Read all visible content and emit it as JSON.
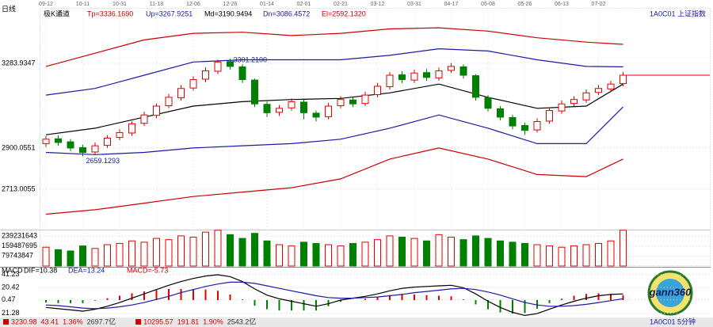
{
  "header": {
    "period": "日线",
    "indicator": "极K通道",
    "symbol": "1A0C01 上证指数"
  },
  "chart_data": [
    {
      "type": "candlestick",
      "categories": [
        "09-12",
        null,
        null,
        "10-11",
        null,
        null,
        "10-31",
        null,
        null,
        "11-18",
        null,
        null,
        "12-06",
        null,
        null,
        "12-26",
        null,
        null,
        "01-14",
        null,
        null,
        "02-01",
        null,
        null,
        "02-21",
        null,
        null,
        "03-12",
        null,
        null,
        "03-31",
        null,
        null,
        "04-17",
        null,
        null,
        "05-08",
        null,
        null,
        "05-26",
        null,
        null,
        "06-13",
        null,
        null,
        "07-02",
        null,
        null
      ],
      "open": [
        2920,
        2942,
        2928,
        2902,
        2882,
        2912,
        2948,
        2968,
        3012,
        3048,
        3092,
        3128,
        3172,
        3212,
        3248,
        3292,
        3268,
        3208,
        3098,
        3062,
        3082,
        3108,
        3058,
        3042,
        3092,
        3118,
        3102,
        3142,
        3178,
        3232,
        3208,
        3242,
        3218,
        3252,
        3268,
        3228,
        3128,
        3078,
        3038,
        3002,
        2982,
        3022,
        3068,
        3102,
        3118,
        3152,
        3168,
        3192
      ],
      "high": [
        2955,
        2958,
        2940,
        2915,
        2925,
        2958,
        2985,
        3022,
        3065,
        3102,
        3145,
        3185,
        3225,
        3266,
        3301,
        3305,
        3280,
        3215,
        3110,
        3095,
        3125,
        3120,
        3070,
        3105,
        3135,
        3130,
        3155,
        3195,
        3245,
        3248,
        3255,
        3258,
        3265,
        3285,
        3280,
        3235,
        3140,
        3090,
        3050,
        3015,
        3035,
        3085,
        3115,
        3135,
        3165,
        3185,
        3205,
        3245
      ],
      "low": [
        2905,
        2910,
        2885,
        2862,
        2870,
        2900,
        2935,
        2955,
        3000,
        3035,
        3080,
        3115,
        3160,
        3198,
        3235,
        3255,
        3195,
        3085,
        3040,
        3045,
        3070,
        3030,
        3020,
        3030,
        3080,
        3085,
        3090,
        3130,
        3165,
        3195,
        3195,
        3205,
        3205,
        3240,
        3215,
        3115,
        3065,
        3025,
        2985,
        2960,
        2970,
        3010,
        3055,
        3090,
        3105,
        3140,
        3155,
        3180
      ],
      "close": [
        2940,
        2925,
        2900,
        2880,
        2910,
        2945,
        2970,
        3010,
        3050,
        3090,
        3130,
        3170,
        3210,
        3250,
        3290,
        3270,
        3210,
        3100,
        3060,
        3080,
        3110,
        3060,
        3040,
        3090,
        3120,
        3100,
        3140,
        3180,
        3230,
        3210,
        3240,
        3220,
        3250,
        3270,
        3230,
        3130,
        3080,
        3040,
        3000,
        2980,
        3020,
        3070,
        3100,
        3120,
        3150,
        3170,
        3190,
        3230
      ],
      "x": [
        0,
        4,
        8,
        12,
        16,
        20,
        24,
        28,
        32,
        36,
        40,
        44,
        47
      ],
      "series": [
        {
          "name": "Tp=3336.1690",
          "color": "#cc0000",
          "values": [
            3270,
            3330,
            3390,
            3420,
            3425,
            3410,
            3420,
            3440,
            3445,
            3430,
            3400,
            3380,
            3370
          ]
        },
        {
          "name": "Up=3267.9251",
          "color": "#1a1aa6",
          "values": [
            3140,
            3170,
            3230,
            3290,
            3300,
            3300,
            3300,
            3320,
            3350,
            3340,
            3300,
            3270,
            3268
          ]
        },
        {
          "name": "Md=3190.9494",
          "color": "#000000",
          "values": [
            2960,
            2990,
            3040,
            3090,
            3110,
            3120,
            3125,
            3150,
            3190,
            3130,
            3080,
            3090,
            3190
          ]
        },
        {
          "name": "Dn=3086.4572",
          "color": "#1a1aa6",
          "values": [
            2880,
            2870,
            2880,
            2900,
            2910,
            2920,
            2940,
            2990,
            3050,
            2990,
            2920,
            2920,
            3086
          ]
        },
        {
          "name": "El=2592.1320",
          "color": "#cc0000",
          "values": [
            2600,
            2620,
            2650,
            2680,
            2700,
            2720,
            2760,
            2850,
            2900,
            2850,
            2780,
            2770,
            2850
          ]
        }
      ],
      "ylim": [
        2530,
        3528
      ],
      "yticks": [
        3283.9347,
        2900.0551,
        2713.0055
      ],
      "annotations": [
        {
          "text": "3301.2100",
          "color": "#1a1aa6"
        },
        {
          "text": "2659.1293",
          "color": "#1a1aa6"
        }
      ]
    },
    {
      "type": "bar",
      "values": [
        150000000,
        130000000,
        120000000,
        160000000,
        140000000,
        170000000,
        180000000,
        200000000,
        190000000,
        220000000,
        210000000,
        240000000,
        230000000,
        270000000,
        285000000,
        250000000,
        220000000,
        260000000,
        200000000,
        170000000,
        160000000,
        190000000,
        180000000,
        170000000,
        160000000,
        180000000,
        190000000,
        210000000,
        240000000,
        230000000,
        220000000,
        200000000,
        250000000,
        230000000,
        210000000,
        240000000,
        220000000,
        200000000,
        190000000,
        180000000,
        170000000,
        160000000,
        150000000,
        160000000,
        170000000,
        180000000,
        200000000,
        285000000
      ],
      "ylim": [
        0,
        290000000
      ],
      "yticks": [
        239231643,
        159487695,
        79743847
      ]
    },
    {
      "type": "macd",
      "title": "MACD",
      "values_label": "MACD=-5.73",
      "values": [
        -4,
        -5,
        -5,
        -5,
        -1,
        3,
        7,
        11,
        14,
        16,
        18,
        18,
        18,
        17,
        15,
        9,
        1,
        -9,
        -15,
        -17,
        -17,
        -17,
        -17,
        -10,
        -3,
        0,
        2,
        5,
        8,
        10,
        9,
        8,
        7,
        6,
        1,
        -7,
        -15,
        -20,
        -22,
        -21,
        -14,
        -5,
        2,
        7,
        10,
        11,
        10,
        8
      ],
      "series": [
        {
          "name": "DIF=10.38",
          "color": "#000000",
          "values": [
            -12,
            -14,
            -16,
            -18,
            -15,
            -10,
            -4,
            3,
            10,
            17,
            24,
            30,
            35,
            39,
            41,
            38,
            30,
            18,
            8,
            2,
            -2,
            -6,
            -10,
            -6,
            0,
            3,
            6,
            10,
            15,
            19,
            21,
            22,
            23,
            24,
            20,
            10,
            -2,
            -12,
            -20,
            -25,
            -22,
            -15,
            -8,
            -2,
            3,
            7,
            9,
            10
          ]
        },
        {
          "name": "DEA=13.24",
          "color": "#1a1aa6",
          "values": [
            -8,
            -9,
            -11,
            -13,
            -14,
            -13,
            -11,
            -8,
            -4,
            1,
            6,
            12,
            17,
            22,
            26,
            29,
            29,
            27,
            23,
            19,
            15,
            11,
            7,
            4,
            3,
            3,
            4,
            5,
            7,
            9,
            12,
            14,
            16,
            18,
            19,
            17,
            13,
            8,
            2,
            -4,
            -8,
            -10,
            -10,
            -9,
            -7,
            -4,
            -1,
            2
          ]
        }
      ],
      "ylim": [
        -27,
        50
      ],
      "yticks": [
        41.23,
        20.42,
        0.47,
        {
          "value": -21.28,
          "label": "21.28"
        }
      ]
    }
  ],
  "status_bar": {
    "items": [
      {
        "text": "3230.98",
        "color": "#cc0000"
      },
      {
        "text": "43.41",
        "color": "#cc0000"
      },
      {
        "text": "1.36%",
        "color": "#cc0000"
      },
      {
        "text": "2697.7亿",
        "color": "#333333"
      },
      {
        "text": "10295.57",
        "color": "#cc0000"
      },
      {
        "text": "191.81",
        "color": "#cc0000"
      },
      {
        "text": "1.90%",
        "color": "#cc0000"
      },
      {
        "text": "2543.2亿",
        "color": "#333333"
      }
    ],
    "right": "1A0C01 5分钟"
  },
  "logo": {
    "text": "gann360"
  }
}
